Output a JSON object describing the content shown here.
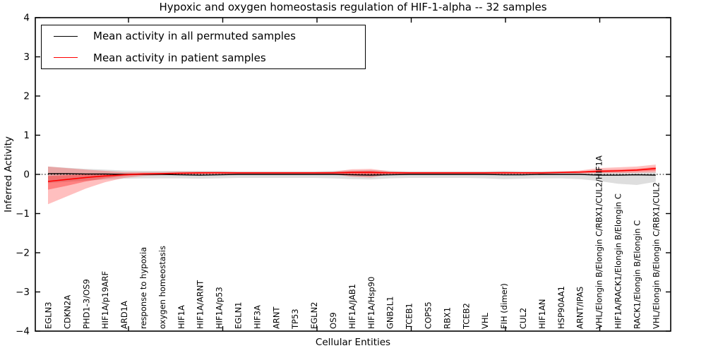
{
  "chart_data": {
    "type": "line",
    "title": "Hypoxic and oxygen homeostasis regulation of HIF-1-alpha -- 32 samples",
    "xlabel": "Cellular Entities",
    "ylabel": "Inferred Activity",
    "ylim": [
      -4,
      4
    ],
    "yticks": [
      4,
      3,
      2,
      1,
      0,
      -1,
      -2,
      -3,
      -4
    ],
    "ytick_labels": [
      "4",
      "3",
      "2",
      "1",
      "0",
      "−1",
      "−2",
      "−3",
      "−4"
    ],
    "grid": false,
    "legend_position": "upper left",
    "baseline": 0,
    "baseline_style": "dotted",
    "categories": [
      "EGLN3",
      "CDKN2A",
      "PHD1-3/OS9",
      "HIF1A/p19ARF",
      "ARD1A",
      "response to hypoxia",
      "oxygen homeostasis",
      "HIF1A",
      "HIF1A/ARNT",
      "HIF1A/p53",
      "EGLN1",
      "HIF3A",
      "ARNT",
      "TP53",
      "EGLN2",
      "OS9",
      "HIF1A/JAB1",
      "HIF1A/Hsp90",
      "GNB2L1",
      "TCEB1",
      "COPS5",
      "RBX1",
      "TCEB2",
      "VHL",
      "FIH (dimer)",
      "CUL2",
      "HIF1AN",
      "HSP90AA1",
      "ARNT/IPAS",
      "VHL/Elongin B/Elongin C/RBX1/CUL2/HIF1A",
      "HIF1A/RACK1/Elongin B/Elongin C",
      "RACK1/Elongin B/Elongin C",
      "VHL/Elongin B/Elongin C/RBX1/CUL2"
    ],
    "series": [
      {
        "name": "Mean activity in all permuted samples",
        "color": "#000000",
        "band_color": "#999999",
        "values": [
          0.02,
          0.02,
          0.01,
          0.01,
          0,
          0,
          0,
          -0.01,
          -0.02,
          -0.01,
          0,
          0,
          0,
          0,
          0,
          0,
          -0.01,
          -0.02,
          -0.01,
          0,
          0,
          0,
          0,
          0,
          -0.01,
          -0.01,
          0,
          0,
          0,
          -0.02,
          -0.02,
          -0.01,
          -0.02
        ],
        "band_upper": [
          0.2,
          0.17,
          0.14,
          0.12,
          0.1,
          0.09,
          0.09,
          0.09,
          0.09,
          0.09,
          0.08,
          0.08,
          0.08,
          0.08,
          0.08,
          0.09,
          0.1,
          0.11,
          0.09,
          0.08,
          0.08,
          0.08,
          0.08,
          0.08,
          0.09,
          0.08,
          0.08,
          0.08,
          0.08,
          0.07,
          0.06,
          0.06,
          0.07
        ],
        "band_lower": [
          -0.22,
          -0.19,
          -0.16,
          -0.13,
          -0.11,
          -0.1,
          -0.1,
          -0.1,
          -0.11,
          -0.1,
          -0.09,
          -0.09,
          -0.09,
          -0.09,
          -0.09,
          -0.1,
          -0.12,
          -0.13,
          -0.1,
          -0.09,
          -0.09,
          -0.09,
          -0.09,
          -0.1,
          -0.12,
          -0.11,
          -0.1,
          -0.1,
          -0.12,
          -0.17,
          -0.24,
          -0.27,
          -0.19
        ]
      },
      {
        "name": "Mean activity in patient samples",
        "color": "#ff0000",
        "band_color": "#ff0000",
        "values": [
          -0.18,
          -0.13,
          -0.08,
          -0.04,
          -0.01,
          0.01,
          0.02,
          0.03,
          0.04,
          0.04,
          0.04,
          0.04,
          0.04,
          0.04,
          0.04,
          0.04,
          0.05,
          0.05,
          0.04,
          0.04,
          0.04,
          0.04,
          0.04,
          0.04,
          0.04,
          0.04,
          0.04,
          0.05,
          0.06,
          0.08,
          0.09,
          0.11,
          0.15
        ],
        "band_outer_upper": [
          0.2,
          0.16,
          0.12,
          0.09,
          0.06,
          0.06,
          0.06,
          0.07,
          0.07,
          0.07,
          0.06,
          0.06,
          0.06,
          0.06,
          0.06,
          0.07,
          0.13,
          0.14,
          0.08,
          0.06,
          0.06,
          0.06,
          0.06,
          0.06,
          0.07,
          0.06,
          0.06,
          0.07,
          0.1,
          0.16,
          0.18,
          0.2,
          0.25
        ],
        "band_outer_lower": [
          -0.76,
          -0.56,
          -0.36,
          -0.2,
          -0.09,
          -0.04,
          -0.02,
          -0.01,
          0.0,
          0.01,
          0.01,
          0.01,
          0.01,
          0.01,
          0.01,
          0.0,
          -0.06,
          -0.08,
          0.0,
          0.01,
          0.01,
          0.01,
          0.01,
          0.01,
          0.01,
          0.01,
          0.01,
          0.02,
          0.02,
          0.03,
          0.03,
          0.04,
          0.05
        ],
        "band_inner_upper": [
          -0.04,
          -0.02,
          0.0,
          0.01,
          0.02,
          0.03,
          0.03,
          0.04,
          0.05,
          0.05,
          0.05,
          0.05,
          0.05,
          0.05,
          0.05,
          0.05,
          0.08,
          0.09,
          0.05,
          0.05,
          0.05,
          0.05,
          0.05,
          0.05,
          0.05,
          0.05,
          0.05,
          0.06,
          0.07,
          0.11,
          0.12,
          0.14,
          0.19
        ],
        "band_inner_lower": [
          -0.39,
          -0.29,
          -0.18,
          -0.1,
          -0.04,
          -0.01,
          0.0,
          0.01,
          0.02,
          0.02,
          0.02,
          0.02,
          0.02,
          0.02,
          0.02,
          0.02,
          0.0,
          -0.01,
          0.02,
          0.02,
          0.02,
          0.02,
          0.02,
          0.02,
          0.02,
          0.02,
          0.02,
          0.03,
          0.04,
          0.05,
          0.06,
          0.07,
          0.09
        ]
      }
    ]
  }
}
